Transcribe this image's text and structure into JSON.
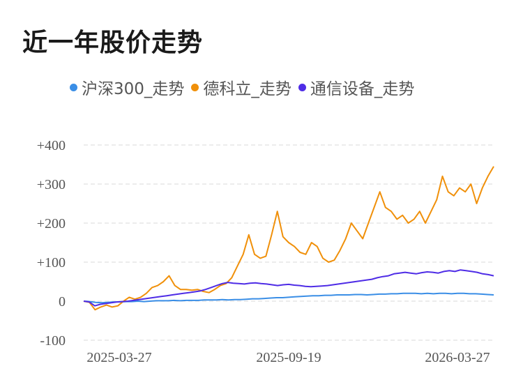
{
  "title": "近一年股价走势",
  "chart_data": {
    "type": "line",
    "title": "近一年股价走势",
    "xlabel": "",
    "ylabel": "",
    "x_tick_labels": [
      "2025-03-27",
      "2025-09-19",
      "2026-03-27"
    ],
    "y_tick_labels": [
      "+400",
      "+300",
      "+200",
      "+100",
      "0",
      "-100"
    ],
    "y_ticks": [
      400,
      300,
      200,
      100,
      0,
      -100
    ],
    "ylim": [
      -100,
      400
    ],
    "grid": true,
    "legend_position": "top",
    "series": [
      {
        "name": "沪深300_走势",
        "color": "#3a8ee6",
        "values": [
          0,
          -1,
          -3,
          -4,
          -3,
          -2,
          -2,
          -1,
          -1,
          0,
          -1,
          0,
          1,
          1,
          1,
          2,
          1,
          2,
          2,
          2,
          3,
          3,
          3,
          4,
          3,
          4,
          4,
          5,
          6,
          6,
          7,
          8,
          9,
          9,
          10,
          11,
          12,
          13,
          14,
          14,
          15,
          15,
          16,
          16,
          16,
          17,
          17,
          16,
          17,
          18,
          18,
          19,
          19,
          20,
          20,
          20,
          19,
          20,
          19,
          20,
          20,
          19,
          20,
          20,
          19,
          19,
          18,
          17,
          16
        ]
      },
      {
        "name": "德科立_走势",
        "color": "#f0900a",
        "values": [
          0,
          -3,
          -22,
          -15,
          -10,
          -15,
          -12,
          0,
          10,
          5,
          10,
          20,
          35,
          40,
          50,
          65,
          40,
          30,
          30,
          28,
          30,
          25,
          22,
          30,
          40,
          45,
          60,
          90,
          120,
          170,
          120,
          110,
          115,
          170,
          230,
          165,
          150,
          140,
          125,
          120,
          150,
          140,
          110,
          100,
          105,
          130,
          160,
          200,
          180,
          160,
          200,
          240,
          280,
          240,
          230,
          210,
          220,
          200,
          210,
          230,
          200,
          230,
          260,
          320,
          280,
          270,
          290,
          280,
          300,
          250,
          290,
          320,
          345
        ]
      },
      {
        "name": "通信设备_走势",
        "color": "#4e2ce6",
        "values": [
          0,
          -2,
          -12,
          -8,
          -6,
          -4,
          -2,
          -1,
          0,
          2,
          4,
          6,
          8,
          10,
          12,
          14,
          16,
          18,
          20,
          22,
          24,
          26,
          30,
          35,
          40,
          45,
          48,
          46,
          45,
          44,
          46,
          47,
          45,
          44,
          42,
          40,
          42,
          43,
          41,
          40,
          38,
          37,
          38,
          39,
          40,
          42,
          44,
          46,
          48,
          50,
          52,
          54,
          56,
          60,
          63,
          65,
          70,
          72,
          74,
          72,
          70,
          73,
          75,
          74,
          72,
          76,
          78,
          76,
          80,
          78,
          76,
          74,
          70,
          68,
          65
        ]
      }
    ]
  }
}
